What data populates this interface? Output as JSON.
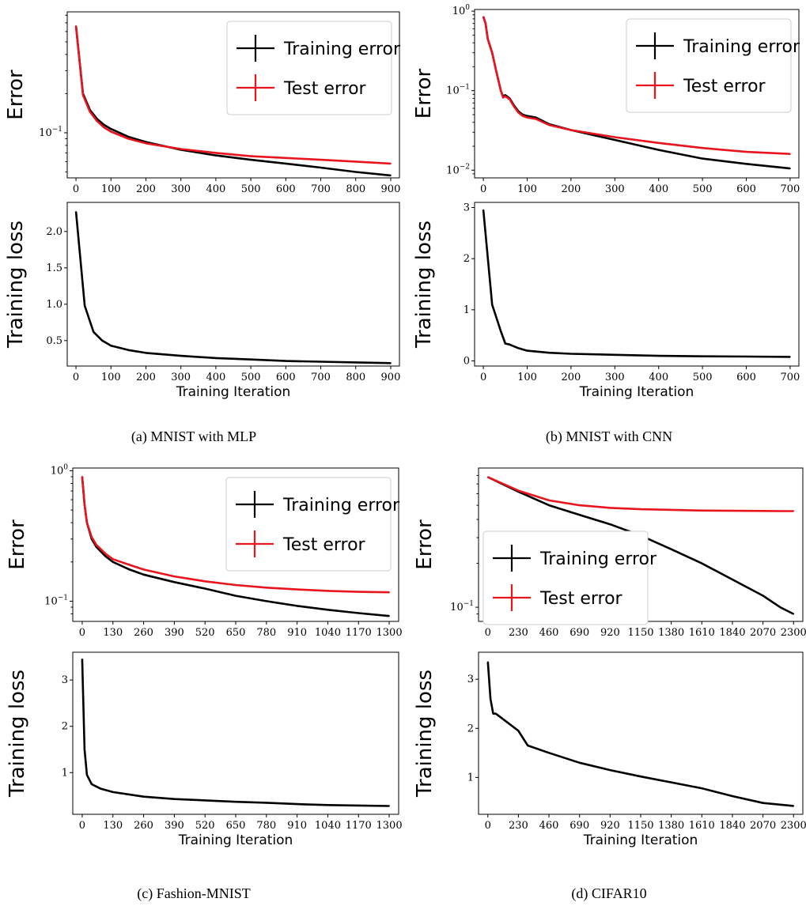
{
  "colors": {
    "train": "#000000",
    "test": "#e8141e"
  },
  "panels": [
    {
      "caption": "(a) MNIST with MLP",
      "error_chart": {
        "ylabel": "Error",
        "scale": "log",
        "ylim": [
          0.045,
          0.85
        ],
        "yticks": [
          0.1
        ],
        "ytick_labels": [
          "10^-1"
        ],
        "xlim": [
          -25,
          925
        ],
        "xticks": [
          0,
          100,
          200,
          300,
          400,
          500,
          600,
          700,
          800,
          900
        ],
        "legend": {
          "placement": "top-right",
          "train": "Training error",
          "test": "Test error"
        }
      },
      "loss_chart": {
        "ylabel": "Training loss",
        "xlabel": "Training Iteration",
        "scale": "linear",
        "ylim": [
          0.15,
          2.4
        ],
        "yticks": [
          0.5,
          1.0,
          1.5,
          2.0
        ],
        "ytick_labels": [
          "0.5",
          "1.0",
          "1.5",
          "2.0"
        ],
        "xlim": [
          -25,
          925
        ],
        "xticks": [
          0,
          100,
          200,
          300,
          400,
          500,
          600,
          700,
          800,
          900
        ]
      }
    },
    {
      "caption": "(b) MNIST with CNN",
      "error_chart": {
        "ylabel": "Error",
        "scale": "log",
        "ylim": [
          0.008,
          1.05
        ],
        "yticks": [
          1,
          0.1,
          0.01
        ],
        "ytick_labels": [
          "10^0",
          "10^-1",
          "10^-2"
        ],
        "xlim": [
          -20,
          720
        ],
        "xticks": [
          0,
          100,
          200,
          300,
          400,
          500,
          600,
          700
        ],
        "legend": {
          "placement": "top-right",
          "train": "Training error",
          "test": "Test error"
        }
      },
      "loss_chart": {
        "ylabel": "Training loss",
        "xlabel": "Training Iteration",
        "scale": "linear",
        "ylim": [
          -0.1,
          3.1
        ],
        "yticks": [
          0,
          1,
          2,
          3
        ],
        "ytick_labels": [
          "0",
          "1",
          "2",
          "3"
        ],
        "xlim": [
          -20,
          720
        ],
        "xticks": [
          0,
          100,
          200,
          300,
          400,
          500,
          600,
          700
        ]
      }
    },
    {
      "caption": "(c) Fashion-MNIST",
      "error_chart": {
        "ylabel": "Error",
        "scale": "log",
        "ylim": [
          0.07,
          1.05
        ],
        "yticks": [
          1,
          0.1
        ],
        "ytick_labels": [
          "10^0",
          "10^-1"
        ],
        "xlim": [
          -40,
          1340
        ],
        "xticks": [
          0,
          130,
          260,
          390,
          520,
          650,
          780,
          910,
          1040,
          1170,
          1300
        ],
        "legend": {
          "placement": "top-right",
          "train": "Training error",
          "test": "Test error"
        }
      },
      "loss_chart": {
        "ylabel": "Training loss",
        "xlabel": "Training Iteration",
        "scale": "linear",
        "ylim": [
          0.1,
          3.6
        ],
        "yticks": [
          1,
          2,
          3
        ],
        "ytick_labels": [
          "1",
          "2",
          "3"
        ],
        "xlim": [
          -40,
          1340
        ],
        "xticks": [
          0,
          130,
          260,
          390,
          520,
          650,
          780,
          910,
          1040,
          1170,
          1300
        ]
      }
    },
    {
      "caption": "(d) CIFAR10",
      "error_chart": {
        "ylabel": "Error",
        "scale": "log",
        "ylim": [
          0.08,
          0.9
        ],
        "yticks": [
          0.1
        ],
        "ytick_labels": [
          "10^-1"
        ],
        "xlim": [
          -70,
          2370
        ],
        "xticks": [
          0,
          230,
          460,
          690,
          920,
          1150,
          1380,
          1610,
          1840,
          2070,
          2300
        ],
        "legend": {
          "placement": "center-left",
          "train": "Training error",
          "test": "Test error"
        }
      },
      "loss_chart": {
        "ylabel": "Training loss",
        "xlabel": "Training Iteration",
        "scale": "linear",
        "ylim": [
          0.25,
          3.55
        ],
        "yticks": [
          1,
          2,
          3
        ],
        "ytick_labels": [
          "1",
          "2",
          "3"
        ],
        "xlim": [
          -70,
          2370
        ],
        "xticks": [
          0,
          230,
          460,
          690,
          920,
          1150,
          1380,
          1610,
          1840,
          2070,
          2300
        ]
      }
    }
  ],
  "chart_data": [
    {
      "type": "line",
      "title": "(a) MNIST with MLP",
      "ylabel": "Error",
      "scale": "log",
      "series": [
        {
          "name": "Training error",
          "x": [
            0,
            20,
            40,
            60,
            80,
            100,
            150,
            200,
            300,
            400,
            500,
            600,
            700,
            800,
            900
          ],
          "values": [
            0.66,
            0.2,
            0.15,
            0.128,
            0.115,
            0.107,
            0.093,
            0.085,
            0.074,
            0.067,
            0.062,
            0.058,
            0.054,
            0.05,
            0.047
          ]
        },
        {
          "name": "Test error",
          "x": [
            0,
            20,
            40,
            60,
            80,
            100,
            150,
            200,
            300,
            400,
            500,
            600,
            700,
            800,
            900
          ],
          "values": [
            0.66,
            0.195,
            0.145,
            0.123,
            0.11,
            0.102,
            0.09,
            0.083,
            0.075,
            0.07,
            0.066,
            0.064,
            0.062,
            0.06,
            0.058
          ]
        }
      ]
    },
    {
      "type": "line",
      "title": "(a) MNIST with MLP",
      "ylabel": "Training loss",
      "xlabel": "Training Iteration",
      "series": [
        {
          "name": "",
          "x": [
            0,
            25,
            50,
            75,
            100,
            150,
            200,
            300,
            400,
            500,
            600,
            700,
            800,
            900
          ],
          "values": [
            2.27,
            0.98,
            0.62,
            0.5,
            0.43,
            0.37,
            0.33,
            0.29,
            0.26,
            0.24,
            0.22,
            0.21,
            0.2,
            0.19
          ]
        }
      ]
    },
    {
      "type": "line",
      "title": "(b) MNIST with CNN",
      "ylabel": "Error",
      "scale": "log",
      "series": [
        {
          "name": "Training error",
          "x": [
            0,
            5,
            10,
            20,
            30,
            40,
            45,
            50,
            60,
            70,
            80,
            90,
            100,
            120,
            150,
            200,
            300,
            400,
            500,
            600,
            700
          ],
          "values": [
            0.85,
            0.7,
            0.45,
            0.3,
            0.17,
            0.1,
            0.085,
            0.088,
            0.08,
            0.065,
            0.055,
            0.05,
            0.048,
            0.046,
            0.038,
            0.032,
            0.024,
            0.018,
            0.014,
            0.012,
            0.0105
          ]
        },
        {
          "name": "Test error",
          "x": [
            0,
            5,
            10,
            20,
            30,
            40,
            45,
            50,
            60,
            70,
            80,
            90,
            100,
            120,
            150,
            200,
            300,
            400,
            500,
            600,
            700
          ],
          "values": [
            0.85,
            0.7,
            0.45,
            0.3,
            0.17,
            0.1,
            0.082,
            0.085,
            0.078,
            0.063,
            0.053,
            0.048,
            0.046,
            0.044,
            0.037,
            0.032,
            0.026,
            0.022,
            0.019,
            0.017,
            0.016
          ]
        }
      ]
    },
    {
      "type": "line",
      "title": "(b) MNIST with CNN",
      "ylabel": "Training loss",
      "xlabel": "Training Iteration",
      "series": [
        {
          "name": "",
          "x": [
            0,
            20,
            40,
            50,
            60,
            80,
            100,
            150,
            200,
            300,
            400,
            500,
            600,
            700
          ],
          "values": [
            2.95,
            1.1,
            0.58,
            0.34,
            0.32,
            0.25,
            0.2,
            0.16,
            0.14,
            0.12,
            0.1,
            0.09,
            0.085,
            0.08
          ]
        }
      ]
    },
    {
      "type": "line",
      "title": "(c) Fashion-MNIST",
      "ylabel": "Error",
      "scale": "log",
      "series": [
        {
          "name": "Training error",
          "x": [
            0,
            10,
            20,
            40,
            60,
            100,
            130,
            200,
            260,
            390,
            520,
            650,
            780,
            910,
            1040,
            1170,
            1300
          ],
          "values": [
            0.9,
            0.55,
            0.4,
            0.3,
            0.26,
            0.22,
            0.2,
            0.175,
            0.16,
            0.14,
            0.125,
            0.11,
            0.1,
            0.092,
            0.086,
            0.081,
            0.077
          ]
        },
        {
          "name": "Test error",
          "x": [
            0,
            10,
            20,
            40,
            60,
            100,
            130,
            200,
            260,
            390,
            520,
            650,
            780,
            910,
            1040,
            1170,
            1300
          ],
          "values": [
            0.9,
            0.55,
            0.4,
            0.31,
            0.27,
            0.23,
            0.21,
            0.19,
            0.175,
            0.155,
            0.142,
            0.133,
            0.127,
            0.123,
            0.12,
            0.118,
            0.117
          ]
        }
      ]
    },
    {
      "type": "line",
      "title": "(c) Fashion-MNIST",
      "ylabel": "Training loss",
      "xlabel": "Training Iteration",
      "series": [
        {
          "name": "",
          "x": [
            0,
            10,
            20,
            40,
            80,
            130,
            260,
            390,
            520,
            650,
            780,
            910,
            1040,
            1170,
            1300
          ],
          "values": [
            3.45,
            1.5,
            0.95,
            0.75,
            0.65,
            0.58,
            0.48,
            0.43,
            0.4,
            0.37,
            0.35,
            0.32,
            0.3,
            0.29,
            0.28
          ]
        }
      ]
    },
    {
      "type": "line",
      "title": "(d) CIFAR10",
      "ylabel": "Error",
      "scale": "log",
      "series": [
        {
          "name": "Training error",
          "x": [
            0,
            230,
            460,
            690,
            920,
            1150,
            1380,
            1610,
            1840,
            2070,
            2200,
            2300
          ],
          "values": [
            0.78,
            0.62,
            0.5,
            0.43,
            0.37,
            0.31,
            0.25,
            0.2,
            0.155,
            0.12,
            0.1,
            0.09
          ]
        },
        {
          "name": "Test error",
          "x": [
            0,
            230,
            460,
            690,
            920,
            1150,
            1380,
            1610,
            1840,
            2070,
            2200,
            2300
          ],
          "values": [
            0.78,
            0.63,
            0.54,
            0.5,
            0.48,
            0.47,
            0.465,
            0.46,
            0.458,
            0.457,
            0.456,
            0.456
          ]
        }
      ]
    },
    {
      "type": "line",
      "title": "(d) CIFAR10",
      "ylabel": "Training loss",
      "xlabel": "Training Iteration",
      "series": [
        {
          "name": "",
          "x": [
            0,
            20,
            40,
            60,
            230,
            300,
            460,
            690,
            920,
            1150,
            1380,
            1610,
            1840,
            2070,
            2300
          ],
          "values": [
            3.35,
            2.6,
            2.3,
            2.3,
            1.95,
            1.65,
            1.5,
            1.3,
            1.15,
            1.02,
            0.9,
            0.78,
            0.62,
            0.48,
            0.42
          ]
        }
      ]
    }
  ]
}
